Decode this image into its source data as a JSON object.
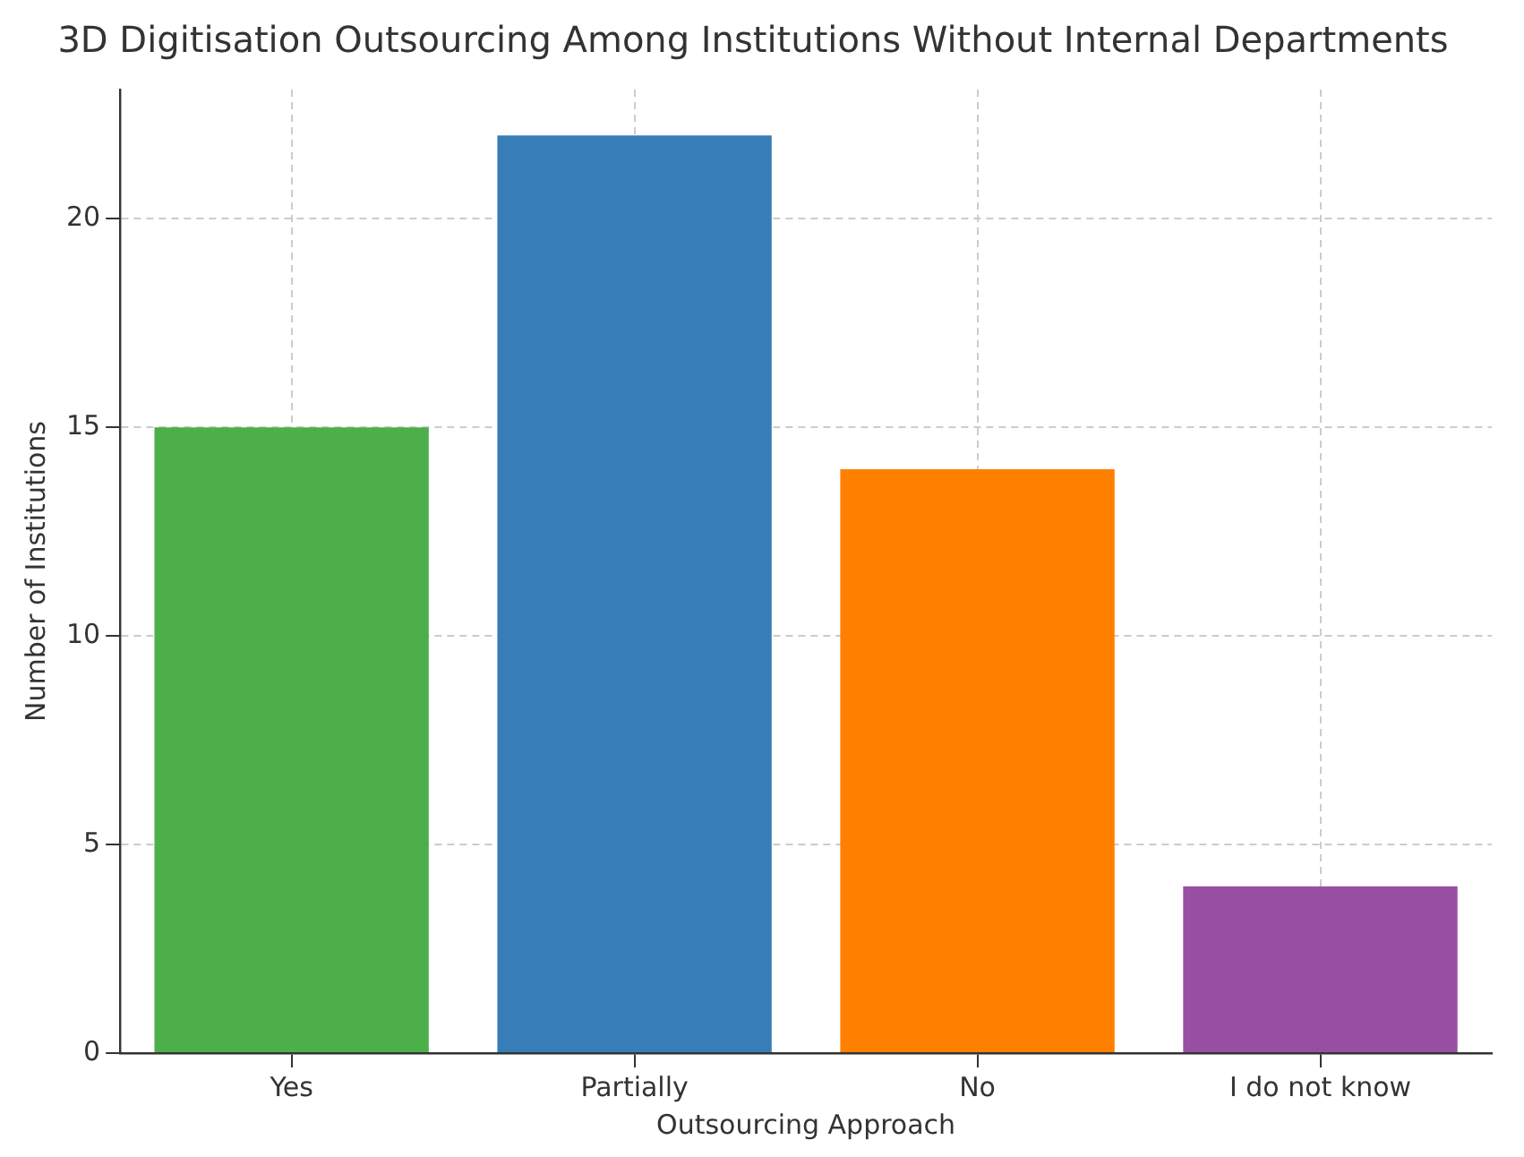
{
  "chart_data": {
    "type": "bar",
    "title": "3D Digitisation Outsourcing Among Institutions Without Internal Departments",
    "xlabel": "Outsourcing Approach",
    "ylabel": "Number of Institutions",
    "categories": [
      "Yes",
      "Partially",
      "No",
      "I do not know"
    ],
    "values": [
      15,
      22,
      14,
      4
    ],
    "colors": [
      "#4daf4a",
      "#377eb8",
      "#ff7f00",
      "#984ea3"
    ],
    "ylim": [
      0,
      23.1
    ],
    "yticks": [
      0,
      5,
      10,
      15,
      20
    ],
    "grid": true,
    "line_style": "dashed"
  }
}
